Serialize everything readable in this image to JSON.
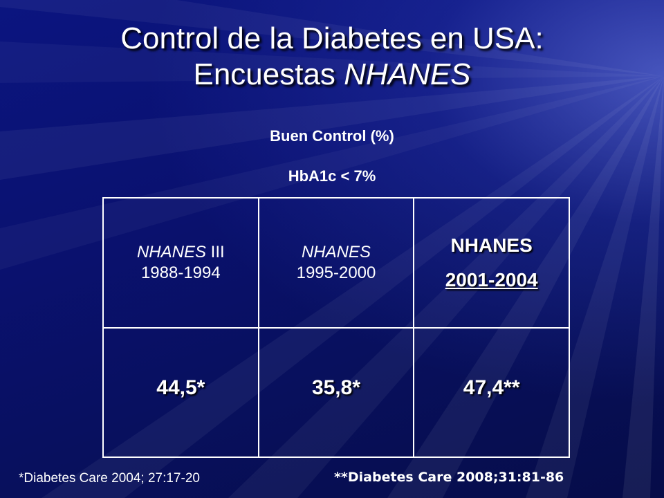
{
  "slide": {
    "title_line1": "Control de la Diabetes en USA:",
    "title_line2_prefix": "Encuestas ",
    "title_line2_italic": "NHANES",
    "subtitle1": "Buen Control (%)",
    "subtitle2": "HbA1c < 7%"
  },
  "table": {
    "columns": [
      {
        "name_italic": "NHANES",
        "name_suffix": " III",
        "years": "1988-1994"
      },
      {
        "name_italic": "NHANES",
        "name_suffix": "",
        "years": "1995-2000"
      },
      {
        "name": "NHANES",
        "years": "2001-2004"
      }
    ],
    "values": [
      "44,5*",
      "35,8*",
      "47,4**"
    ]
  },
  "footnotes": {
    "left": "*Diabetes Care 2004; 27:17-20",
    "right": "**Diabetes Care 2008;31:81-86"
  },
  "colors": {
    "background": "#0a1170",
    "text": "#ffffff"
  }
}
